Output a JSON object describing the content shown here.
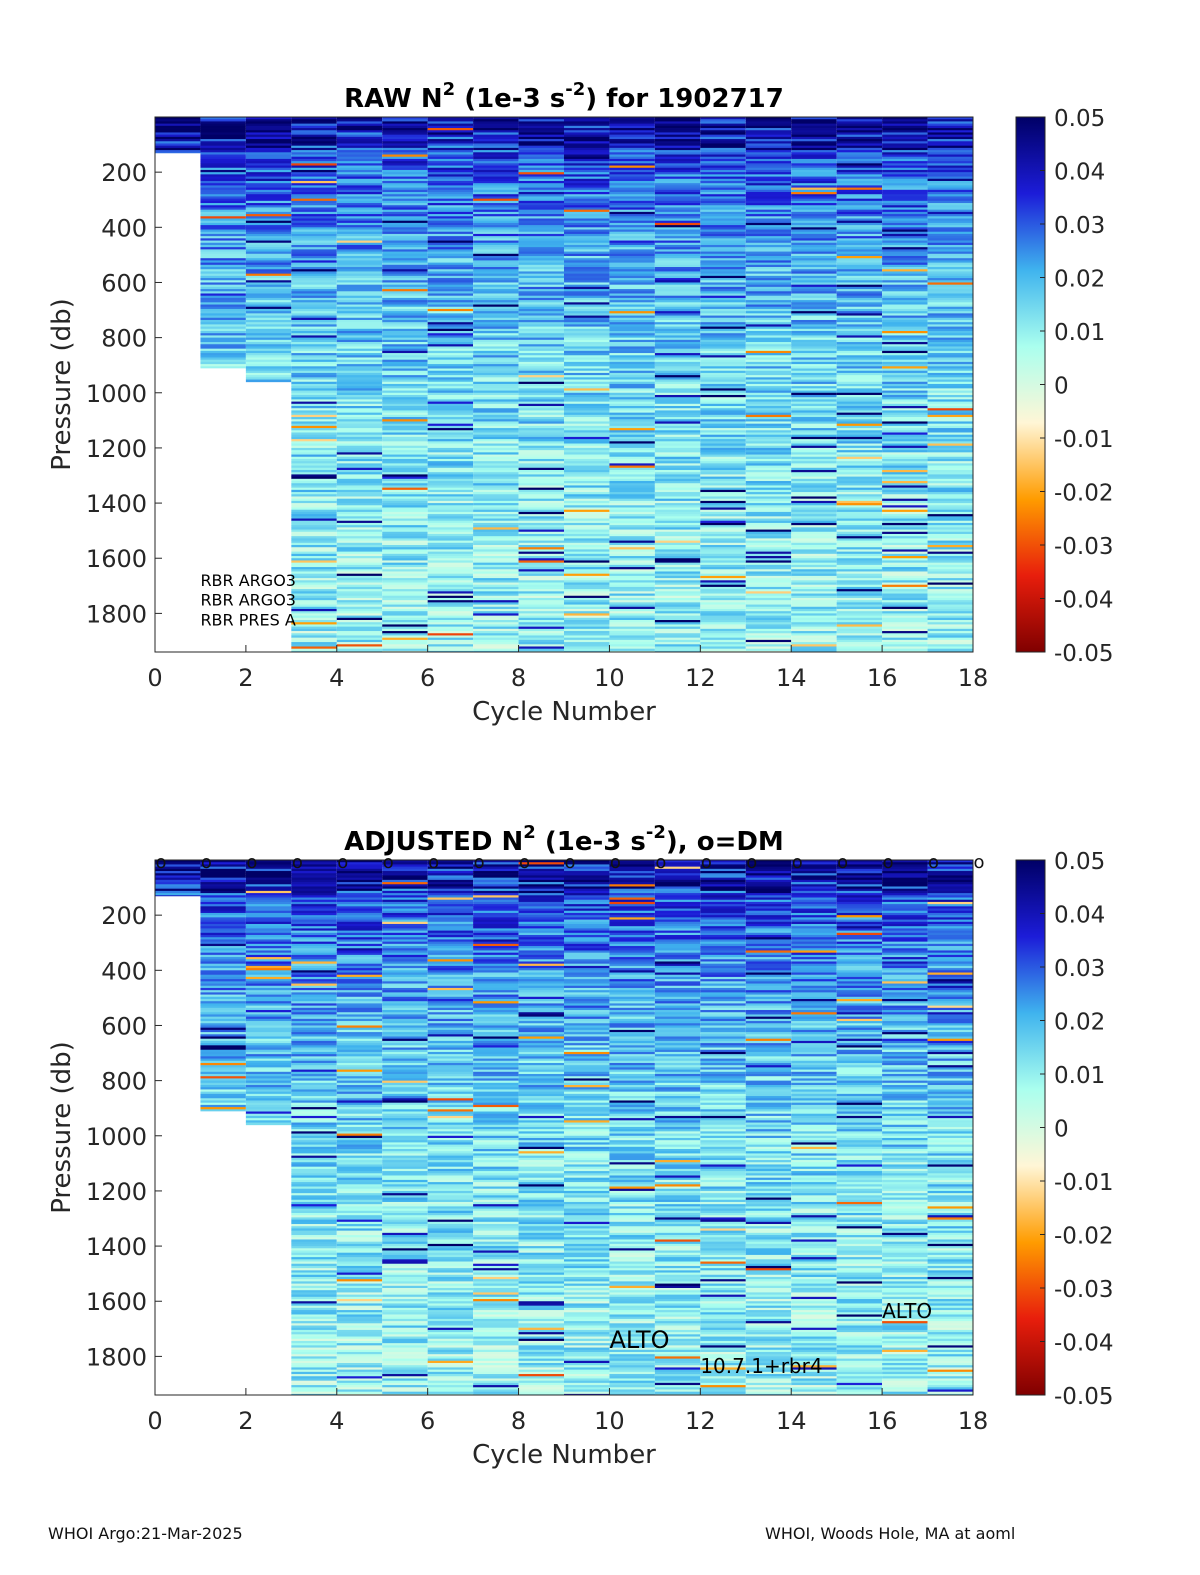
{
  "chart_data": [
    {
      "type": "heatmap",
      "title": {
        "prefix": "RAW N",
        "sup1": "2",
        "mid": " (1e-3 s",
        "sup2": "-2",
        "suffix": ") for 1902717"
      },
      "xlabel": "Cycle Number",
      "ylabel": "Pressure (db)",
      "xlim": [
        0,
        18
      ],
      "ylim": [
        1940,
        0
      ],
      "xticks": [
        "0",
        "2",
        "4",
        "6",
        "8",
        "10",
        "12",
        "14",
        "16",
        "18"
      ],
      "yticks": [
        "200",
        "400",
        "600",
        "800",
        "1000",
        "1200",
        "1400",
        "1600",
        "1800"
      ],
      "colorbar": {
        "ticks": [
          "0.05",
          "0.04",
          "0.03",
          "0.02",
          "0.01",
          "0",
          "-0.01",
          "-0.02",
          "-0.03",
          "-0.04",
          "-0.05"
        ],
        "range": [
          -0.05,
          0.05
        ]
      },
      "colormap": [
        "#800000",
        "#e81e0c",
        "#ff9c00",
        "#fff6d6",
        "#aaffee",
        "#3fb3ee",
        "#1c1cd8",
        "#000066"
      ],
      "max_pressure_by_cycle": [
        130,
        910,
        960,
        1940,
        1940,
        1940,
        1940,
        1940,
        1940,
        1940,
        1940,
        1940,
        1940,
        1940,
        1940,
        1940,
        1940,
        1940
      ],
      "annotations": [
        {
          "text": "RBR ARGO3"
        },
        {
          "text": "RBR ARGO3"
        },
        {
          "text": "RBR PRES A"
        }
      ]
    },
    {
      "type": "heatmap",
      "title": {
        "prefix": "ADJUSTED N",
        "sup1": "2",
        "mid": " (1e-3 s",
        "sup2": "-2",
        "suffix": "), o=DM"
      },
      "xlabel": "Cycle Number",
      "ylabel": "Pressure (db)",
      "xlim": [
        0,
        18
      ],
      "ylim": [
        1940,
        0
      ],
      "xticks": [
        "0",
        "2",
        "4",
        "6",
        "8",
        "10",
        "12",
        "14",
        "16",
        "18"
      ],
      "yticks": [
        "200",
        "400",
        "600",
        "800",
        "1000",
        "1200",
        "1400",
        "1600",
        "1800"
      ],
      "colorbar": {
        "ticks": [
          "0.05",
          "0.04",
          "0.03",
          "0.02",
          "0.01",
          "0",
          "-0.01",
          "-0.02",
          "-0.03",
          "-0.04",
          "-0.05"
        ],
        "range": [
          -0.05,
          0.05
        ]
      },
      "colormap": [
        "#800000",
        "#e81e0c",
        "#ff9c00",
        "#fff6d6",
        "#aaffee",
        "#3fb3ee",
        "#1c1cd8",
        "#000066"
      ],
      "max_pressure_by_cycle": [
        130,
        910,
        960,
        1940,
        1940,
        1940,
        1940,
        1940,
        1940,
        1940,
        1940,
        1940,
        1940,
        1940,
        1940,
        1940,
        1940,
        1940
      ],
      "dm_marker": "o",
      "dm_cycles": [
        0,
        1,
        2,
        3,
        4,
        5,
        6,
        7,
        8,
        9,
        10,
        11,
        12,
        13,
        14,
        15,
        16,
        17,
        18
      ],
      "annotations": [
        {
          "text": "ALTO"
        },
        {
          "text": "10.7.1+rbr4"
        },
        {
          "text": "ALTO"
        }
      ]
    }
  ],
  "footer": {
    "left": "WHOI Argo:21-Mar-2025",
    "right": "WHOI, Woods Hole, MA at aoml"
  }
}
